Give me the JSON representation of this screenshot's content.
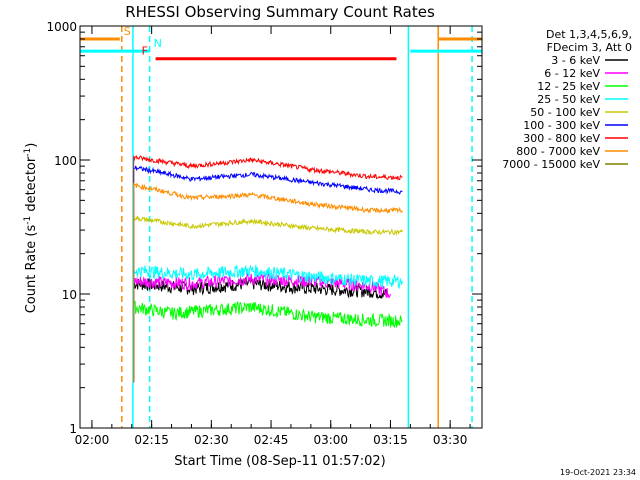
{
  "chart_data": {
    "type": "line",
    "title": "RHESSI Observing Summary Count Rates",
    "xlabel": "Start Time (08-Sep-11 01:57:02)",
    "ylabel_parts": [
      "Count Rate (s",
      "-1",
      " detector",
      "-1",
      ")"
    ],
    "yscale": "log",
    "ylim": [
      1,
      1000
    ],
    "xlim_minutes_from_0200": [
      -3,
      98
    ],
    "x_ticks": [
      {
        "label": "02:00",
        "min": 0
      },
      {
        "label": "02:15",
        "min": 15
      },
      {
        "label": "02:30",
        "min": 30
      },
      {
        "label": "02:45",
        "min": 45
      },
      {
        "label": "03:00",
        "min": 60
      },
      {
        "label": "03:15",
        "min": 75
      },
      {
        "label": "03:30",
        "min": 90
      }
    ],
    "y_ticks": [
      {
        "label": "1",
        "value": 1
      },
      {
        "label": "10",
        "value": 10
      },
      {
        "label": "100",
        "value": 100
      },
      {
        "label": "1000",
        "value": 1000
      }
    ],
    "legend_header": [
      "Det 1,3,4,5,6,9,",
      "FDecim 3, Att 0"
    ],
    "legend_placement": "right",
    "series": [
      {
        "name": "3 - 6 keV",
        "color": "#000000",
        "points": [
          [
            10.5,
            12
          ],
          [
            25,
            11
          ],
          [
            40,
            12
          ],
          [
            55,
            11
          ],
          [
            70,
            10.5
          ],
          [
            74,
            10
          ]
        ]
      },
      {
        "name": "6 - 12 keV",
        "color": "#ff00ff",
        "points": [
          [
            10.5,
            12.5
          ],
          [
            25,
            12
          ],
          [
            40,
            13
          ],
          [
            55,
            12.5
          ],
          [
            70,
            11.5
          ],
          [
            75,
            10
          ]
        ]
      },
      {
        "name": "12 - 25 keV",
        "color": "#00ff00",
        "points": [
          [
            10.5,
            8
          ],
          [
            20,
            7.2
          ],
          [
            40,
            8
          ],
          [
            55,
            6.8
          ],
          [
            70,
            6.4
          ],
          [
            78,
            6.3
          ]
        ]
      },
      {
        "name": "25 - 50 keV",
        "color": "#00ffff",
        "points": [
          [
            10.5,
            15
          ],
          [
            25,
            14
          ],
          [
            40,
            15
          ],
          [
            55,
            13.5
          ],
          [
            70,
            12.5
          ],
          [
            78,
            12.5
          ]
        ]
      },
      {
        "name": "50 - 100 keV",
        "color": "#c8c800",
        "points": [
          [
            10.5,
            37
          ],
          [
            25,
            32
          ],
          [
            40,
            35
          ],
          [
            55,
            31
          ],
          [
            70,
            29
          ],
          [
            78,
            29
          ]
        ]
      },
      {
        "name": "100 - 300 keV",
        "color": "#0000ff",
        "points": [
          [
            10.5,
            88
          ],
          [
            25,
            72
          ],
          [
            40,
            78
          ],
          [
            55,
            68
          ],
          [
            70,
            60
          ],
          [
            78,
            58
          ]
        ]
      },
      {
        "name": "300 - 800 keV",
        "color": "#ff0000",
        "points": [
          [
            10.5,
            105
          ],
          [
            25,
            90
          ],
          [
            40,
            100
          ],
          [
            55,
            85
          ],
          [
            70,
            75
          ],
          [
            78,
            74
          ]
        ]
      },
      {
        "name": "800 - 7000 keV",
        "color": "#ff8c00",
        "points": [
          [
            10.5,
            65
          ],
          [
            25,
            52
          ],
          [
            40,
            55
          ],
          [
            55,
            47
          ],
          [
            70,
            42
          ],
          [
            78,
            42
          ]
        ]
      },
      {
        "name": "7000 - 15000 keV",
        "color": "#808000",
        "points": []
      }
    ],
    "flags": [
      {
        "label": "S",
        "color": "#ff8c00",
        "value": 800,
        "segments": [
          [
            -3,
            7
          ],
          [
            87,
            98
          ]
        ]
      },
      {
        "label": "N",
        "color": "#00ffff",
        "value": 650,
        "segments": [
          [
            -3,
            14.5
          ],
          [
            80,
            98
          ]
        ]
      },
      {
        "label": "F",
        "color": "#ff0000",
        "value": 570,
        "segments": [
          [
            16,
            76.5
          ]
        ]
      }
    ],
    "vlines": [
      {
        "min": 7.5,
        "color": "#ff8c00",
        "style": "dashed"
      },
      {
        "min": 14.5,
        "color": "#00ffff",
        "style": "dashed"
      },
      {
        "min": 10.3,
        "color": "#00ffff",
        "style": "solid"
      },
      {
        "min": 79.5,
        "color": "#00ffff",
        "style": "solid"
      },
      {
        "min": 87,
        "color": "#ff8c00",
        "style": "solid"
      },
      {
        "min": 95.5,
        "color": "#00ffff",
        "style": "dashed"
      }
    ]
  },
  "timestamp": "19-Oct-2021 23:34"
}
